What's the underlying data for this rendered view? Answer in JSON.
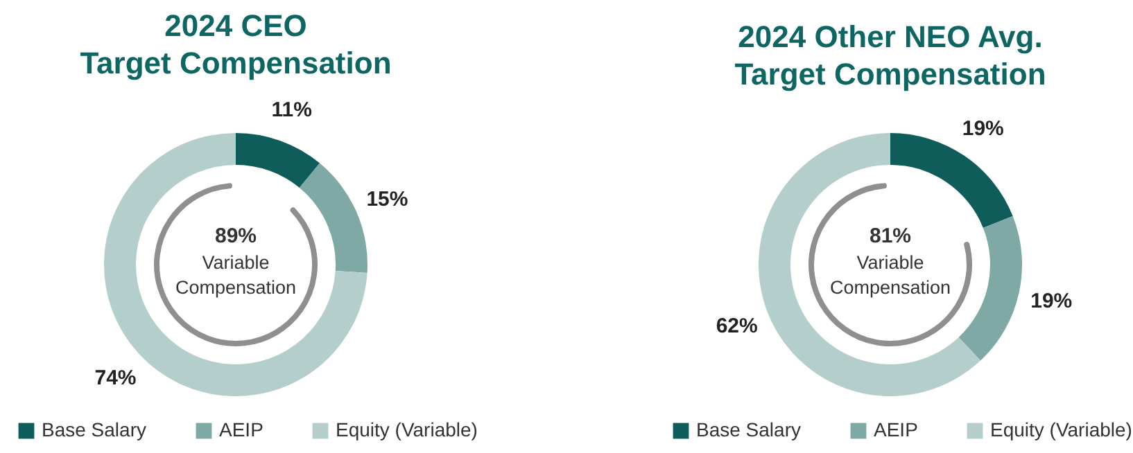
{
  "chart_data": [
    {
      "type": "donut",
      "title": "2024 CEO\nTarget Compensation",
      "categories": [
        "Base Salary",
        "AEIP",
        "Equity (Variable)"
      ],
      "values": [
        11,
        15,
        74
      ],
      "colors": [
        "#0e5d5b",
        "#7ea9a5",
        "#b4cecb"
      ],
      "value_labels": [
        "11%",
        "15%",
        "74%"
      ],
      "annotations": [
        "89%",
        "Variable Compensation"
      ],
      "legend": "bottom left"
    },
    {
      "type": "donut",
      "title": "2024 Other NEO Avg.\nTarget Compensation",
      "categories": [
        "Base Salary",
        "AEIP",
        "Equity (Variable)"
      ],
      "values": [
        19,
        19,
        62
      ],
      "colors": [
        "#0e5d5b",
        "#7ea9a5",
        "#b4cecb"
      ],
      "value_labels": [
        "19%",
        "19%",
        "62%"
      ],
      "annotations": [
        "81%",
        "Variable Compensation"
      ],
      "legend": "bottom left"
    }
  ]
}
